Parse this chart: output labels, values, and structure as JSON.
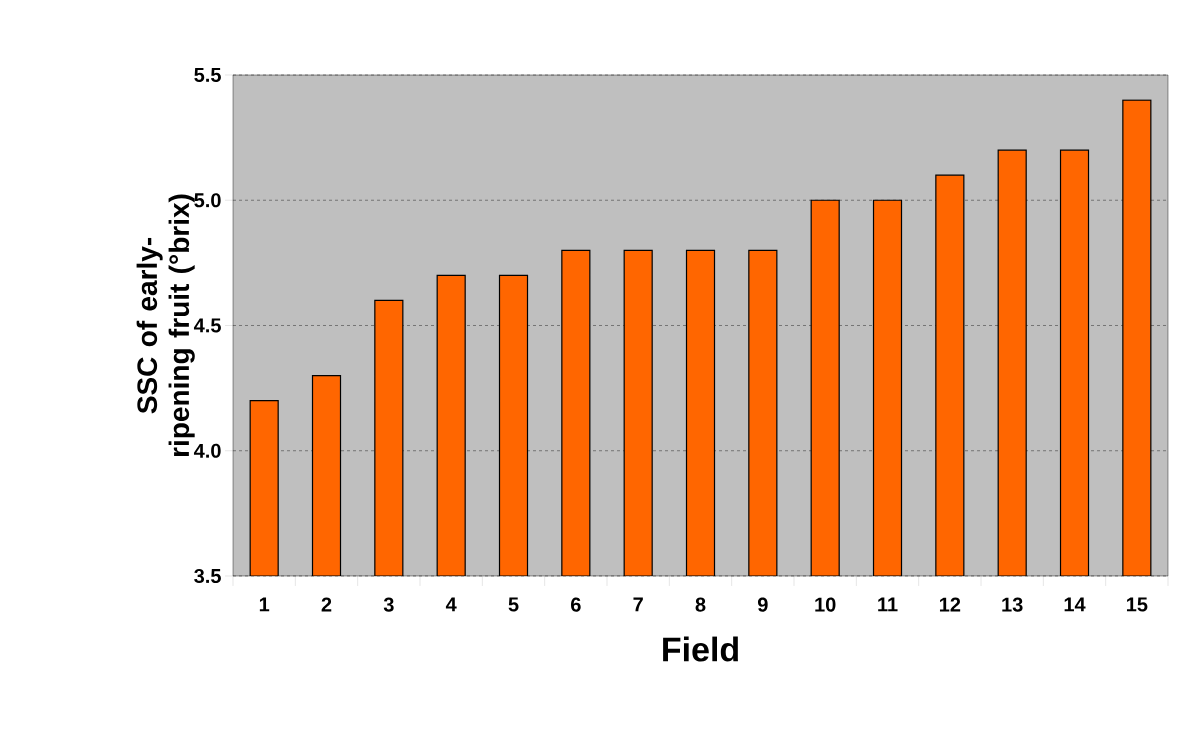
{
  "chart_data": {
    "type": "bar",
    "xlabel": "Field",
    "ylabel": "SSC of early-ripening fruit (°brix)",
    "categories": [
      "1",
      "2",
      "3",
      "4",
      "5",
      "6",
      "7",
      "8",
      "9",
      "10",
      "11",
      "12",
      "13",
      "14",
      "15"
    ],
    "values": [
      4.2,
      4.3,
      4.6,
      4.7,
      4.7,
      4.8,
      4.8,
      4.8,
      4.8,
      5.0,
      5.0,
      5.1,
      5.2,
      5.2,
      5.4
    ],
    "color": "#ff6600",
    "ylim": [
      3.5,
      5.5
    ],
    "yticks": [
      {
        "value": 3.5,
        "label": "3.5"
      },
      {
        "value": 4.0,
        "label": "4.0"
      },
      {
        "value": 4.5,
        "label": "4.5"
      },
      {
        "value": 5.0,
        "label": "5.0"
      },
      {
        "value": 5.5,
        "label": "5.5"
      }
    ],
    "grid": "y"
  }
}
